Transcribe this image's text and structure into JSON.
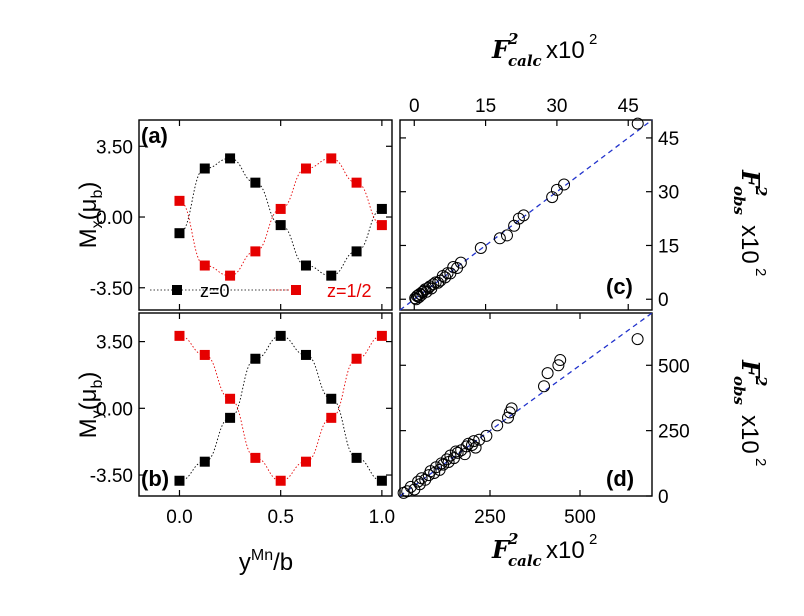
{
  "chart_data": [
    {
      "panel": "a",
      "type": "scatter",
      "panel_label": "(a)",
      "ylabel_main": "M",
      "ylabel_sub": "x",
      "ylabel_unit_open": "(μ",
      "ylabel_unit_sub": "b",
      "ylabel_unit_close": ")",
      "xlim": [
        -0.2,
        1.05
      ],
      "ylim": [
        -4.6,
        4.8
      ],
      "yticks": [
        3.5,
        0.0,
        -3.5
      ],
      "ytick_labels": [
        "3.50",
        "0.00",
        "-3.50"
      ],
      "series": [
        {
          "name": "z=0",
          "color": "#000000",
          "x": [
            0,
            0.125,
            0.25,
            0.375,
            0.5,
            0.625,
            0.75,
            0.875,
            1.0
          ],
          "y": [
            -0.8,
            2.4,
            2.9,
            1.7,
            -0.4,
            -2.4,
            -2.9,
            -1.7,
            0.4
          ]
        },
        {
          "name": "z=1/2",
          "color": "#e60000",
          "x": [
            0,
            0.125,
            0.25,
            0.375,
            0.5,
            0.625,
            0.75,
            0.875,
            1.0
          ],
          "y": [
            0.8,
            -2.4,
            -2.9,
            -1.7,
            0.4,
            2.4,
            2.9,
            1.7,
            -0.4
          ]
        }
      ],
      "legend": {
        "placement": "bottom",
        "entries": [
          "z=0",
          "z=1/2"
        ]
      }
    },
    {
      "panel": "b",
      "type": "scatter",
      "panel_label": "(b)",
      "ylabel_main": "M",
      "ylabel_sub": "y",
      "ylabel_unit_open": "(μ",
      "ylabel_unit_sub": "b",
      "ylabel_unit_close": ")",
      "xlabel_main": "y",
      "xlabel_sup": "Mn",
      "xlabel_rest": "/b",
      "xlim": [
        -0.2,
        1.05
      ],
      "ylim": [
        -4.6,
        5.0
      ],
      "xticks": [
        0.0,
        0.5,
        1.0
      ],
      "xtick_labels": [
        "0.0",
        "0.5",
        "1.0"
      ],
      "yticks": [
        3.5,
        0.0,
        -3.5
      ],
      "ytick_labels": [
        "3.50",
        "0.00",
        "-3.50"
      ],
      "series": [
        {
          "name": "z=0",
          "color": "#000000",
          "x": [
            0,
            0.125,
            0.25,
            0.375,
            0.5,
            0.625,
            0.75,
            0.875,
            1.0
          ],
          "y": [
            -3.8,
            -2.8,
            -0.5,
            2.6,
            3.8,
            2.8,
            0.5,
            -2.6,
            -3.8
          ]
        },
        {
          "name": "z=1/2",
          "color": "#e60000",
          "x": [
            0,
            0.125,
            0.25,
            0.375,
            0.5,
            0.625,
            0.75,
            0.875,
            1.0
          ],
          "y": [
            3.8,
            2.8,
            0.5,
            -2.6,
            -3.8,
            -2.8,
            -0.5,
            2.6,
            3.8
          ]
        }
      ]
    },
    {
      "panel": "c",
      "type": "scatter",
      "panel_label": "(c)",
      "xlabel_main": "F",
      "xlabel_sup": "2",
      "xlabel_sub": "calc",
      "xlabel_rest": "x10",
      "xlabel_exp": "2",
      "ylabel_main": "F",
      "ylabel_sup": "2",
      "ylabel_sub": "obs",
      "ylabel_rest": "x10",
      "ylabel_exp": "2",
      "xlim": [
        -3,
        50
      ],
      "ylim": [
        -3,
        50
      ],
      "xticks": [
        0,
        15,
        30,
        45
      ],
      "xtick_labels": [
        "0",
        "15",
        "30",
        "45"
      ],
      "yticks": [
        0,
        15,
        30,
        45
      ],
      "ytick_labels": [
        "0",
        "15",
        "30",
        "45"
      ],
      "fit_line": {
        "x": [
          -3,
          50
        ],
        "y": [
          -3,
          50
        ],
        "color": "#2233cc",
        "style": "dashed"
      },
      "points": {
        "x": [
          0.2,
          0.4,
          0.6,
          0.8,
          1.0,
          1.2,
          1.5,
          1.7,
          2.0,
          2.3,
          2.6,
          3.0,
          3.3,
          3.6,
          4.0,
          4.5,
          5.0,
          5.5,
          6.0,
          6.5,
          7.0,
          7.6,
          8.2,
          9.0,
          9.8,
          14.0,
          18.0,
          19.5,
          21.0,
          22.0,
          23.0,
          29.0,
          30.0,
          31.5,
          47.0
        ],
        "y": [
          0.3,
          0.0,
          0.9,
          1.1,
          0.6,
          1.5,
          1.2,
          2.0,
          2.3,
          2.8,
          2.1,
          3.2,
          3.6,
          3.0,
          4.2,
          4.7,
          4.6,
          5.2,
          6.5,
          6.1,
          7.3,
          7.2,
          9.0,
          8.7,
          10.2,
          14.3,
          17.0,
          17.8,
          20.5,
          22.5,
          23.4,
          28.5,
          30.5,
          32.0,
          49.0
        ]
      }
    },
    {
      "panel": "d",
      "type": "scatter",
      "panel_label": "(d)",
      "xlabel_main": "F",
      "xlabel_sup": "2",
      "xlabel_sub": "calc",
      "xlabel_rest": "x10",
      "xlabel_exp": "2",
      "ylabel_main": "F",
      "ylabel_sup": "2",
      "ylabel_sub": "obs",
      "ylabel_rest": "x10",
      "ylabel_exp": "2",
      "xlim": [
        0,
        700
      ],
      "ylim": [
        0,
        700
      ],
      "xticks": [
        250,
        500
      ],
      "xtick_labels": [
        "250",
        "500"
      ],
      "yticks": [
        0,
        250,
        500
      ],
      "ytick_labels": [
        "0",
        "250",
        "500"
      ],
      "fit_line": {
        "x": [
          0,
          700
        ],
        "y": [
          0,
          700
        ],
        "color": "#2233cc",
        "style": "dashed"
      },
      "points": {
        "x": [
          10,
          20,
          30,
          40,
          50,
          55,
          60,
          70,
          80,
          85,
          95,
          100,
          110,
          115,
          120,
          130,
          135,
          140,
          150,
          155,
          160,
          170,
          180,
          185,
          190,
          200,
          205,
          210,
          220,
          240,
          270,
          300,
          305,
          310,
          400,
          410,
          440,
          445,
          660
        ],
        "y": [
          12,
          18,
          35,
          25,
          55,
          45,
          68,
          62,
          80,
          95,
          88,
          110,
          100,
          125,
          120,
          140,
          130,
          155,
          145,
          170,
          165,
          175,
          160,
          190,
          200,
          195,
          210,
          185,
          215,
          230,
          270,
          300,
          320,
          335,
          420,
          470,
          500,
          520,
          600
        ]
      }
    }
  ]
}
